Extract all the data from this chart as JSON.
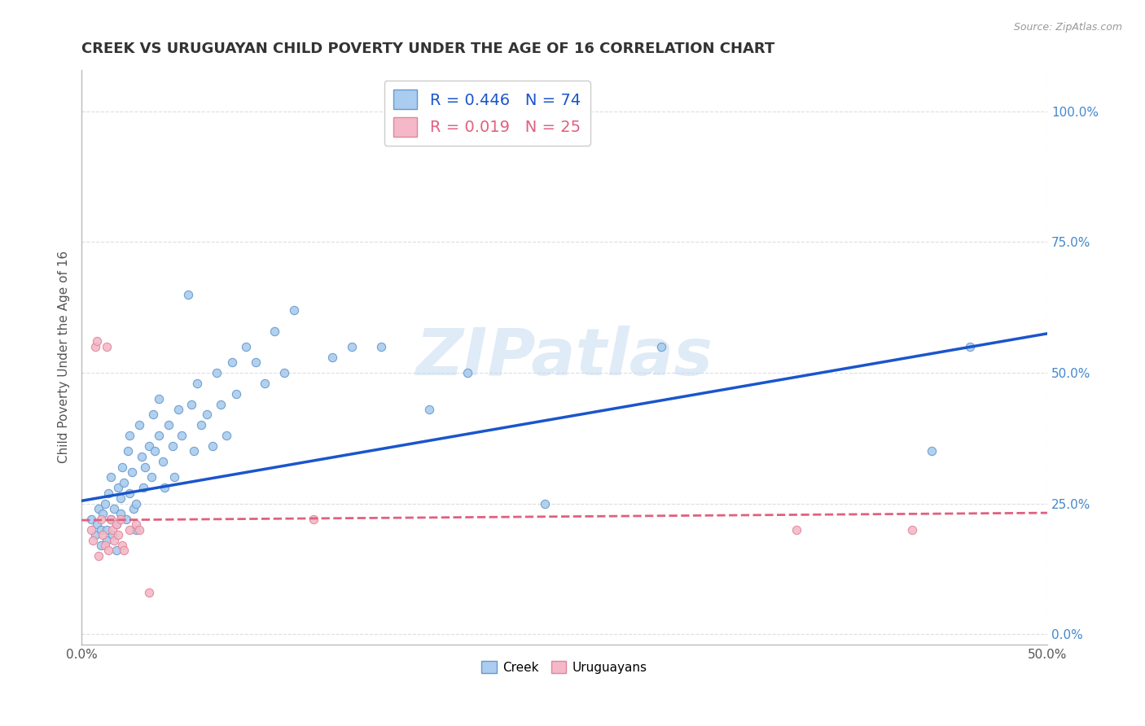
{
  "title": "CREEK VS URUGUAYAN CHILD POVERTY UNDER THE AGE OF 16 CORRELATION CHART",
  "source": "Source: ZipAtlas.com",
  "ylabel": "Child Poverty Under the Age of 16",
  "xlim": [
    0.0,
    0.5
  ],
  "ylim": [
    -0.02,
    1.08
  ],
  "yticks": [
    0.0,
    0.25,
    0.5,
    0.75,
    1.0
  ],
  "creek_color": "#aaccee",
  "creek_edge": "#6699cc",
  "uruguayan_color": "#f5b8c8",
  "uruguayan_edge": "#dd8899",
  "creek_line_color": "#1a55cc",
  "uruguayan_line_color": "#e06080",
  "watermark": "ZIPatlas",
  "legend_r_creek": "R = 0.446",
  "legend_n_creek": "N = 74",
  "legend_r_uruguayan": "R = 0.019",
  "legend_n_uruguayan": "N = 25",
  "creek_scatter_x": [
    0.005,
    0.007,
    0.008,
    0.009,
    0.01,
    0.01,
    0.011,
    0.012,
    0.013,
    0.013,
    0.014,
    0.015,
    0.015,
    0.016,
    0.017,
    0.018,
    0.018,
    0.019,
    0.02,
    0.02,
    0.021,
    0.022,
    0.023,
    0.024,
    0.025,
    0.025,
    0.026,
    0.027,
    0.028,
    0.028,
    0.03,
    0.031,
    0.032,
    0.033,
    0.035,
    0.036,
    0.037,
    0.038,
    0.04,
    0.04,
    0.042,
    0.043,
    0.045,
    0.047,
    0.048,
    0.05,
    0.052,
    0.055,
    0.057,
    0.058,
    0.06,
    0.062,
    0.065,
    0.068,
    0.07,
    0.072,
    0.075,
    0.078,
    0.08,
    0.085,
    0.09,
    0.095,
    0.1,
    0.105,
    0.11,
    0.13,
    0.14,
    0.155,
    0.18,
    0.2,
    0.24,
    0.3,
    0.44,
    0.46
  ],
  "creek_scatter_y": [
    0.22,
    0.19,
    0.21,
    0.24,
    0.2,
    0.17,
    0.23,
    0.25,
    0.2,
    0.18,
    0.27,
    0.3,
    0.22,
    0.19,
    0.24,
    0.21,
    0.16,
    0.28,
    0.26,
    0.23,
    0.32,
    0.29,
    0.22,
    0.35,
    0.38,
    0.27,
    0.31,
    0.24,
    0.2,
    0.25,
    0.4,
    0.34,
    0.28,
    0.32,
    0.36,
    0.3,
    0.42,
    0.35,
    0.45,
    0.38,
    0.33,
    0.28,
    0.4,
    0.36,
    0.3,
    0.43,
    0.38,
    0.65,
    0.44,
    0.35,
    0.48,
    0.4,
    0.42,
    0.36,
    0.5,
    0.44,
    0.38,
    0.52,
    0.46,
    0.55,
    0.52,
    0.48,
    0.58,
    0.5,
    0.62,
    0.53,
    0.55,
    0.55,
    0.43,
    0.5,
    0.25,
    0.55,
    0.35,
    0.55
  ],
  "uruguayan_scatter_x": [
    0.005,
    0.006,
    0.007,
    0.008,
    0.009,
    0.01,
    0.011,
    0.012,
    0.013,
    0.014,
    0.015,
    0.016,
    0.017,
    0.018,
    0.019,
    0.02,
    0.021,
    0.022,
    0.025,
    0.028,
    0.03,
    0.035,
    0.12,
    0.37,
    0.43
  ],
  "uruguayan_scatter_y": [
    0.2,
    0.18,
    0.55,
    0.56,
    0.15,
    0.22,
    0.19,
    0.17,
    0.55,
    0.16,
    0.22,
    0.2,
    0.18,
    0.21,
    0.19,
    0.22,
    0.17,
    0.16,
    0.2,
    0.21,
    0.2,
    0.08,
    0.22,
    0.2,
    0.2
  ],
  "creek_trendline_x": [
    0.0,
    0.5
  ],
  "creek_trendline_y": [
    0.255,
    0.575
  ],
  "uruguayan_trendline_x": [
    0.0,
    0.5
  ],
  "uruguayan_trendline_y": [
    0.218,
    0.232
  ],
  "background_color": "#ffffff",
  "grid_color": "#dddddd",
  "title_fontsize": 13,
  "axis_label_fontsize": 11,
  "tick_fontsize": 11,
  "scatter_size": 55
}
